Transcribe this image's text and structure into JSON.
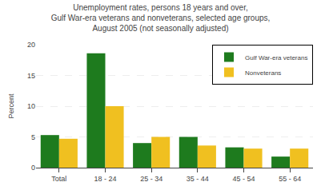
{
  "chart_data": {
    "type": "bar",
    "title": "Unemployment rates, persons 18 years and over,\nGulf War-era veterans and nonveterans, selected age groups,\nAugust 2005 (not seasonally adjusted)",
    "categories": [
      "Total",
      "18 - 24",
      "25 - 34",
      "35 - 44",
      "45 - 54",
      "55 - 64"
    ],
    "series": [
      {
        "name": "Gulf War-era veterans",
        "color": "#1e7b1e",
        "values": [
          5.3,
          18.6,
          4.0,
          5.0,
          3.3,
          1.8
        ]
      },
      {
        "name": "Nonveterans",
        "color": "#f0c020",
        "values": [
          4.7,
          10.0,
          5.0,
          3.6,
          3.1,
          3.1
        ]
      }
    ],
    "ylabel": "Percent",
    "ylim": [
      0,
      20
    ],
    "yticks": [
      0,
      5,
      10,
      15,
      20
    ],
    "grid": true,
    "legend": "upper right"
  }
}
